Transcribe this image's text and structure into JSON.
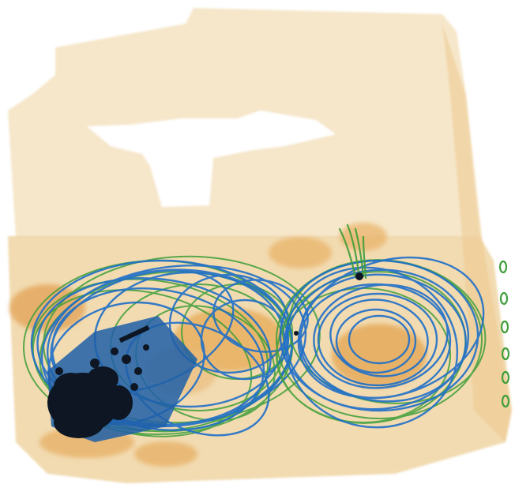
{
  "image": {
    "kind": "x-ray-baggage-scan",
    "background_color": "#ffffff",
    "colors": {
      "organic_light": "#f3dcb0",
      "organic_mid": "#eab877",
      "organic_dense": "#e3a24c",
      "mixed_green": "#3f9e3a",
      "metal_blue": "#1f6fc9",
      "dense_black": "#0d1622"
    },
    "objects": [
      {
        "name": "container-box",
        "material": "organic"
      },
      {
        "name": "cable-coil-left",
        "material": "metal"
      },
      {
        "name": "cable-coil-right",
        "material": "metal"
      },
      {
        "name": "dense-cluster",
        "material": "dense"
      },
      {
        "name": "side-clips",
        "material": "mixed"
      }
    ]
  }
}
